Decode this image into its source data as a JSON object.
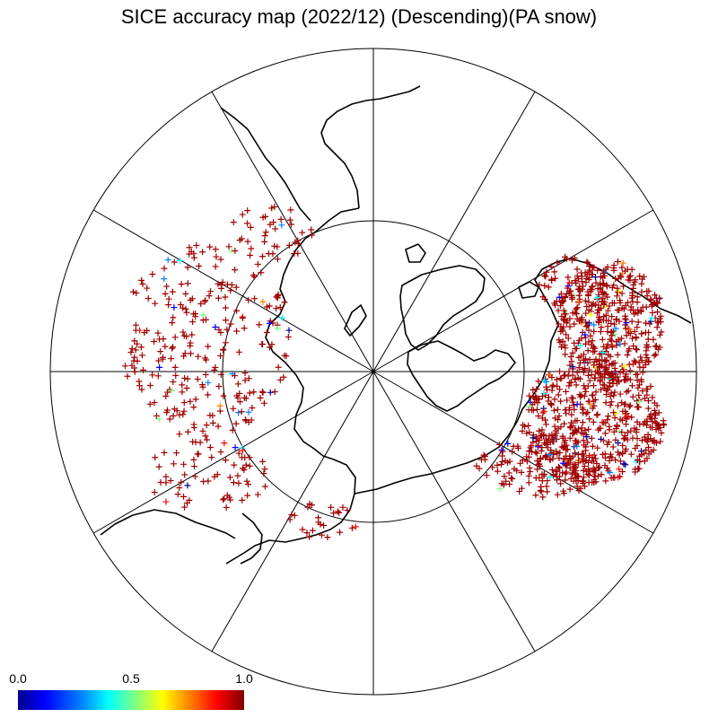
{
  "title": "SICE accuracy map (2022/12) (Descending)(PA snow)",
  "projection": "north-polar-stereographic",
  "graticule": {
    "meridian_step_deg": 30,
    "latitude_circle_deg": 60
  },
  "colorbar": {
    "min_label": "0.0",
    "mid_label": "0.5",
    "max_label": "1.0",
    "colors": [
      "#000090",
      "#0000ff",
      "#0080ff",
      "#00ffff",
      "#80ff80",
      "#ffff00",
      "#ff8000",
      "#ff0000",
      "#800000"
    ]
  },
  "marker": {
    "symbol": "+",
    "dominant_color": "#a00000"
  },
  "colors": {
    "frame": "#000000",
    "coast": "#000000",
    "background": "#ffffff"
  }
}
